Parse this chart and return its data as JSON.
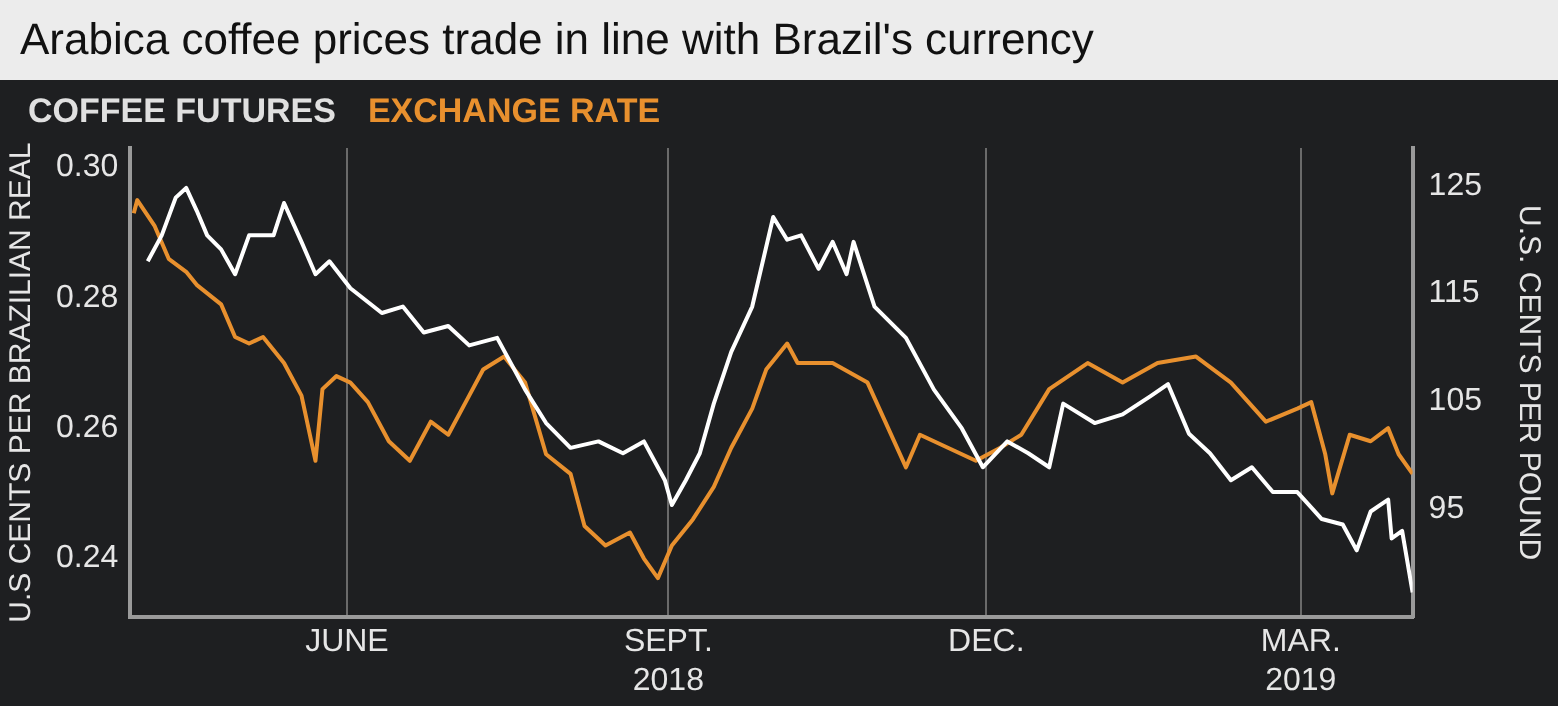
{
  "chart_data": {
    "type": "line",
    "title": "Arabica coffee prices trade in line with Brazil's currency",
    "ylabel": "U.S CENTS PER BRAZILIAN REAL",
    "y2label": "U.S. CENTS PER POUND",
    "legend": "top left",
    "grid": "x",
    "marker": "none",
    "line_style": "solid",
    "xlim": [
      "2018-03-31",
      "2019-04-02"
    ],
    "xticks": [
      {
        "value": "2018-06-01",
        "label": "JUNE"
      },
      {
        "value": "2018-09-01",
        "label": "SEPT.\n2018"
      },
      {
        "value": "2018-12-01",
        "label": "DEC."
      },
      {
        "value": "2019-03-01",
        "label": "MAR.\n2019"
      }
    ],
    "ylim": [
      0.231,
      0.303
    ],
    "yticks": [
      {
        "value": 0.24,
        "label": "0.24"
      },
      {
        "value": 0.26,
        "label": "0.26"
      },
      {
        "value": 0.28,
        "label": "0.28"
      },
      {
        "value": 0.3,
        "label": "0.30"
      }
    ],
    "y2lim": [
      85,
      128.5
    ],
    "y2ticks": [
      95,
      105,
      115,
      125
    ],
    "series": [
      {
        "name": "COFFEE FUTURES",
        "color": "#ffffff",
        "axis": "y2",
        "x": [
          "2018-04-05",
          "2018-04-09",
          "2018-04-13",
          "2018-04-16",
          "2018-04-19",
          "2018-04-22",
          "2018-04-26",
          "2018-04-30",
          "2018-05-04",
          "2018-05-11",
          "2018-05-14",
          "2018-05-19",
          "2018-05-23",
          "2018-05-27",
          "2018-06-02",
          "2018-06-11",
          "2018-06-17",
          "2018-06-23",
          "2018-06-30",
          "2018-07-06",
          "2018-07-14",
          "2018-07-22",
          "2018-07-28",
          "2018-08-04",
          "2018-08-12",
          "2018-08-19",
          "2018-08-25",
          "2018-08-31",
          "2018-09-02",
          "2018-09-06",
          "2018-09-10",
          "2018-09-14",
          "2018-09-19",
          "2018-09-25",
          "2018-10-01",
          "2018-10-05",
          "2018-10-09",
          "2018-10-14",
          "2018-10-18",
          "2018-10-22",
          "2018-10-24",
          "2018-10-30",
          "2018-11-08",
          "2018-11-16",
          "2018-11-24",
          "2018-11-30",
          "2018-12-07",
          "2018-12-13",
          "2018-12-19",
          "2018-12-23",
          "2019-01-01",
          "2019-01-09",
          "2019-01-17",
          "2019-01-22",
          "2019-01-28",
          "2019-02-03",
          "2019-02-09",
          "2019-02-15",
          "2019-02-21",
          "2019-02-28",
          "2019-03-07",
          "2019-03-13",
          "2019-03-17",
          "2019-03-21",
          "2019-03-26",
          "2019-03-27",
          "2019-03-30",
          "2019-04-02"
        ],
        "values": [
          118.0,
          120.4,
          123.9,
          124.8,
          122.7,
          120.4,
          119.1,
          116.8,
          120.4,
          120.4,
          123.4,
          119.8,
          116.8,
          118.0,
          115.5,
          113.2,
          113.8,
          111.4,
          112.0,
          110.2,
          110.9,
          106.1,
          103.0,
          100.7,
          101.3,
          100.2,
          101.3,
          97.7,
          95.4,
          97.7,
          100.2,
          104.8,
          109.6,
          113.8,
          122.1,
          120.0,
          120.4,
          117.3,
          119.8,
          116.8,
          119.8,
          113.8,
          110.9,
          106.1,
          102.5,
          98.9,
          101.3,
          100.2,
          98.9,
          104.8,
          103.0,
          103.8,
          105.5,
          106.6,
          102.0,
          100.2,
          97.7,
          98.9,
          96.6,
          96.6,
          94.1,
          93.6,
          91.2,
          94.8,
          95.9,
          92.3,
          93.0,
          87.3
        ]
      },
      {
        "name": "EXCHANGE RATE",
        "color": "#e8902e",
        "axis": "y",
        "x": [
          "2018-04-01",
          "2018-04-02",
          "2018-04-07",
          "2018-04-11",
          "2018-04-16",
          "2018-04-19",
          "2018-04-26",
          "2018-04-30",
          "2018-05-04",
          "2018-05-08",
          "2018-05-14",
          "2018-05-19",
          "2018-05-23",
          "2018-05-25",
          "2018-05-29",
          "2018-06-02",
          "2018-06-07",
          "2018-06-13",
          "2018-06-19",
          "2018-06-25",
          "2018-06-30",
          "2018-07-06",
          "2018-07-10",
          "2018-07-16",
          "2018-07-22",
          "2018-07-28",
          "2018-08-04",
          "2018-08-08",
          "2018-08-14",
          "2018-08-21",
          "2018-08-25",
          "2018-08-29",
          "2018-09-02",
          "2018-09-08",
          "2018-09-14",
          "2018-09-19",
          "2018-09-25",
          "2018-09-29",
          "2018-10-05",
          "2018-10-08",
          "2018-10-18",
          "2018-10-28",
          "2018-11-08",
          "2018-11-12",
          "2018-11-20",
          "2018-11-28",
          "2018-12-05",
          "2018-12-11",
          "2018-12-19",
          "2018-12-30",
          "2019-01-09",
          "2019-01-19",
          "2019-01-30",
          "2019-02-09",
          "2019-02-19",
          "2019-02-28",
          "2019-03-04",
          "2019-03-08",
          "2019-03-10",
          "2019-03-15",
          "2019-03-21",
          "2019-03-26",
          "2019-03-29",
          "2019-04-02"
        ],
        "values": [
          0.293,
          0.295,
          0.291,
          0.286,
          0.284,
          0.282,
          0.279,
          0.274,
          0.273,
          0.274,
          0.27,
          0.265,
          0.255,
          0.266,
          0.268,
          0.267,
          0.264,
          0.258,
          0.255,
          0.261,
          0.259,
          0.265,
          0.269,
          0.271,
          0.267,
          0.256,
          0.253,
          0.245,
          0.242,
          0.244,
          0.24,
          0.237,
          0.242,
          0.246,
          0.251,
          0.257,
          0.263,
          0.269,
          0.273,
          0.27,
          0.27,
          0.267,
          0.254,
          0.259,
          0.257,
          0.255,
          0.257,
          0.259,
          0.266,
          0.27,
          0.267,
          0.27,
          0.271,
          0.267,
          0.261,
          0.263,
          0.264,
          0.256,
          0.25,
          0.259,
          0.258,
          0.26,
          0.256,
          0.253
        ]
      }
    ]
  }
}
